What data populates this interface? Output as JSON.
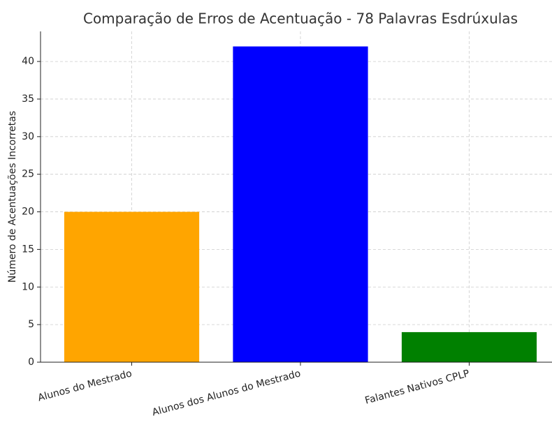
{
  "chart_data": {
    "type": "bar",
    "title": "Comparação de Erros de Acentuação - 78 Palavras Esdrúxulas",
    "y_label": "Número de Acentuações Incorretas",
    "categories": [
      "Alunos do Mestrado",
      "Alunos dos Alunos do Mestrado",
      "Falantes Nativos CPLP"
    ],
    "values": [
      20,
      42,
      4
    ],
    "colors": [
      "#ffa500",
      "#0000ff",
      "#008000"
    ],
    "ylim": [
      0,
      44
    ],
    "yticks": [
      0,
      5,
      10,
      15,
      20,
      25,
      30,
      35,
      40
    ],
    "grid": true
  }
}
